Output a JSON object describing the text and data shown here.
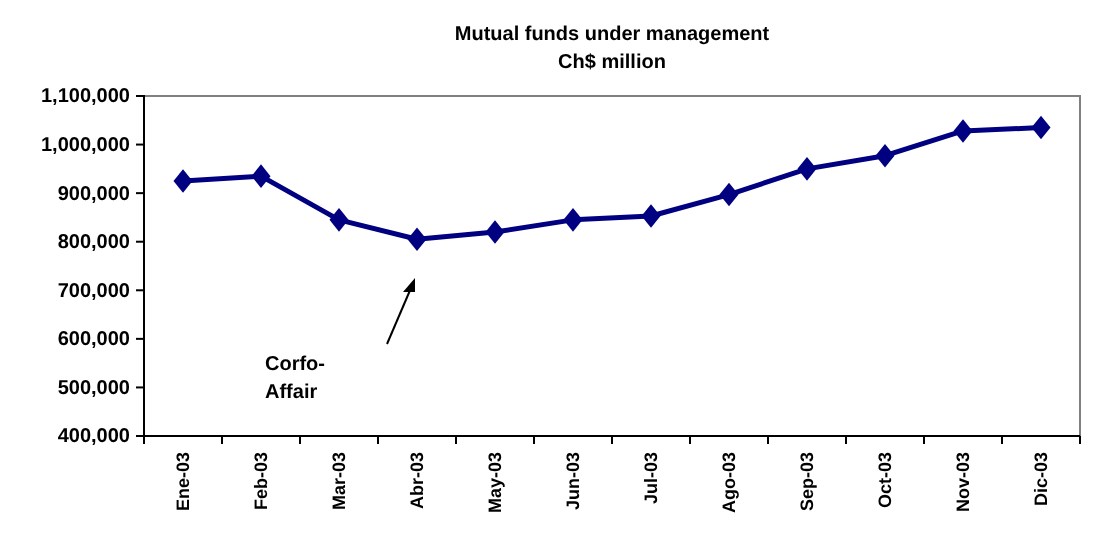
{
  "chart_data": {
    "type": "line",
    "title": "Mutual funds under management",
    "subtitle": "Ch$ million",
    "categories": [
      "Ene-03",
      "Feb-03",
      "Mar-03",
      "Abr-03",
      "May-03",
      "Jun-03",
      "Jul-03",
      "Ago-03",
      "Sep-03",
      "Oct-03",
      "Nov-03",
      "Dic-03"
    ],
    "series": [
      {
        "color": "#000080",
        "values": [
          925000,
          935000,
          845000,
          805000,
          820000,
          845000,
          853000,
          897000,
          950000,
          977000,
          1028000,
          1035000
        ]
      }
    ],
    "ylim": [
      400000,
      1100000
    ],
    "yticks": [
      {
        "value": 400000,
        "label": "400,000"
      },
      {
        "value": 500000,
        "label": "500,000"
      },
      {
        "value": 600000,
        "label": "600,000"
      },
      {
        "value": 700000,
        "label": "700,000"
      },
      {
        "value": 800000,
        "label": "800,000"
      },
      {
        "value": 900000,
        "label": "900,000"
      },
      {
        "value": 1000000,
        "label": "1,000,000"
      },
      {
        "value": 1100000,
        "label": "1,100,000"
      }
    ],
    "marker": "diamond",
    "grid": false,
    "annotations": [
      "Corfo- Affair"
    ]
  }
}
